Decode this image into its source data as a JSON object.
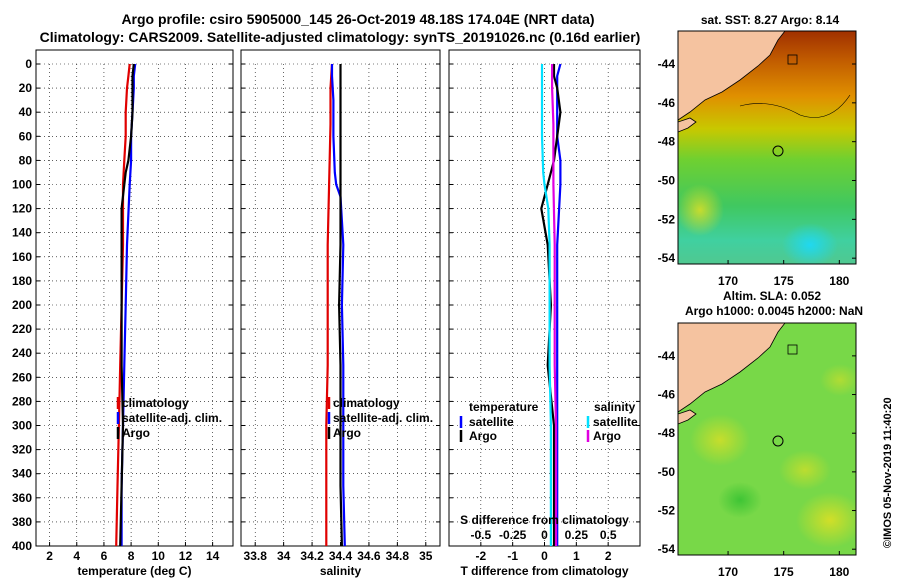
{
  "title_line1": "Argo profile: csiro 5905000_145 26-Oct-2019 48.18S 174.04E (NRT data)",
  "title_line2": "Climatology: CARS2009. Satellite-adjusted climatology: synTS_20191026.nc (0.16d earlier)",
  "map1_title": "sat. SST: 8.27 Argo: 8.14",
  "map2_title1": "Altim. SLA: 0.052",
  "map2_title2": "Argo h1000: 0.0045 h2000: NaN",
  "watermark": "©IMOS 05-Nov-2019 11:40:20",
  "colors": {
    "climatology": "#e00000",
    "satellite": "#0000ff",
    "argo": "#000000",
    "sal_satellite": "#00e0ff",
    "sal_argo": "#e000e0",
    "land": "#f5c3a0"
  },
  "chart_data": [
    {
      "type": "line",
      "id": "temperature",
      "xlabel": "temperature (deg C)",
      "ylabel": "",
      "xlim": [
        1,
        15.5
      ],
      "ylim": [
        400,
        0
      ],
      "xticks": [
        2,
        4,
        6,
        8,
        10,
        12,
        14
      ],
      "yticks": [
        0,
        20,
        40,
        60,
        80,
        100,
        120,
        140,
        160,
        180,
        200,
        220,
        240,
        260,
        280,
        300,
        320,
        340,
        360,
        380,
        400
      ],
      "legend": [
        "climatology",
        "satellite-adj. clim.",
        "Argo"
      ],
      "legend_position": "center-right",
      "series": [
        {
          "name": "climatology",
          "color": "#e00000",
          "depth": [
            0,
            10,
            20,
            40,
            60,
            80,
            100,
            150,
            200,
            250,
            300,
            350,
            400
          ],
          "values": [
            7.9,
            7.8,
            7.7,
            7.6,
            7.6,
            7.5,
            7.4,
            7.4,
            7.3,
            7.2,
            7.1,
            7.0,
            6.9
          ]
        },
        {
          "name": "satellite-adj. clim.",
          "color": "#0000ff",
          "depth": [
            0,
            10,
            20,
            40,
            60,
            80,
            100,
            150,
            200,
            250,
            300,
            350,
            400
          ],
          "values": [
            8.3,
            8.2,
            8.2,
            8.1,
            8.0,
            8.0,
            7.9,
            7.7,
            7.6,
            7.5,
            7.4,
            7.3,
            7.3
          ]
        },
        {
          "name": "Argo",
          "color": "#000000",
          "depth": [
            0,
            10,
            20,
            40,
            60,
            80,
            90,
            100,
            120,
            150,
            200,
            250,
            300,
            350,
            400
          ],
          "values": [
            8.2,
            8.1,
            8.1,
            8.1,
            8.0,
            7.8,
            7.6,
            7.5,
            7.3,
            7.3,
            7.3,
            7.3,
            7.4,
            7.3,
            7.2
          ]
        }
      ]
    },
    {
      "type": "line",
      "id": "salinity",
      "xlabel": "salinity",
      "ylabel": "",
      "xlim": [
        33.7,
        35.1
      ],
      "ylim": [
        400,
        0
      ],
      "xticks": [
        33.8,
        34,
        34.2,
        34.4,
        34.6,
        34.8,
        35
      ],
      "xticklabels": [
        "33.8",
        "34",
        "34.2",
        "34.4",
        "34.6",
        "34.8",
        "35"
      ],
      "legend": [
        "climatology",
        "satellite-adj. clim.",
        "Argo"
      ],
      "legend_position": "center-right",
      "series": [
        {
          "name": "climatology",
          "color": "#e00000",
          "depth": [
            0,
            20,
            50,
            100,
            150,
            200,
            250,
            300,
            350,
            400
          ],
          "values": [
            34.34,
            34.33,
            34.33,
            34.32,
            34.31,
            34.31,
            34.31,
            34.3,
            34.3,
            34.3
          ]
        },
        {
          "name": "satellite-adj. clim.",
          "color": "#0000ff",
          "depth": [
            0,
            10,
            30,
            60,
            90,
            100,
            110,
            130,
            150,
            200,
            250,
            300,
            350,
            400
          ],
          "values": [
            34.34,
            34.34,
            34.35,
            34.35,
            34.36,
            34.37,
            34.4,
            34.41,
            34.42,
            34.41,
            34.42,
            34.42,
            34.42,
            34.43
          ]
        },
        {
          "name": "Argo",
          "color": "#000000",
          "depth": [
            0,
            20,
            50,
            100,
            150,
            200,
            250,
            300,
            350,
            400
          ],
          "values": [
            34.4,
            34.4,
            34.4,
            34.4,
            34.4,
            34.39,
            34.4,
            34.4,
            34.4,
            34.41
          ]
        }
      ]
    },
    {
      "type": "line",
      "id": "difference",
      "xlabel": "T difference from climatology",
      "xlabel_top": "S difference from climatology",
      "xlim": [
        -3,
        3
      ],
      "ylim": [
        400,
        0
      ],
      "xticks": [
        -2,
        -1,
        0,
        1,
        2
      ],
      "xticks_s": [
        -0.5,
        -0.25,
        0,
        0.25,
        0.5
      ],
      "xticklabels_s": [
        "-0.5",
        "-0.25",
        "0",
        "0.25",
        "0.5"
      ],
      "legend_temperature_title": "temperature",
      "legend_salinity_title": "salinity",
      "legend_temperature": [
        "satellite",
        "Argo"
      ],
      "legend_salinity": [
        "satellite",
        "Argo"
      ],
      "series": [
        {
          "name": "T satellite",
          "color": "#0000ff",
          "depth": [
            0,
            10,
            20,
            40,
            60,
            80,
            100,
            150,
            200,
            250,
            300,
            350,
            400
          ],
          "values": [
            0.5,
            0.4,
            0.4,
            0.4,
            0.4,
            0.5,
            0.5,
            0.4,
            0.4,
            0.4,
            0.4,
            0.4,
            0.4
          ]
        },
        {
          "name": "T Argo",
          "color": "#000000",
          "depth": [
            0,
            10,
            20,
            40,
            60,
            80,
            90,
            100,
            120,
            150,
            200,
            250,
            300,
            350,
            400
          ],
          "values": [
            0.3,
            0.3,
            0.4,
            0.5,
            0.4,
            0.3,
            0.2,
            0.1,
            -0.1,
            0.1,
            0.2,
            0.1,
            0.3,
            0.3,
            0.3
          ]
        },
        {
          "name": "S satellite",
          "color": "#00e0ff",
          "depth": [
            0,
            10,
            30,
            60,
            90,
            100,
            120,
            150,
            200,
            250,
            300,
            350,
            400
          ],
          "values": [
            -0.02,
            -0.02,
            -0.02,
            -0.02,
            -0.01,
            0.0,
            0.03,
            0.04,
            0.04,
            0.04,
            0.05,
            0.05,
            0.05
          ]
        },
        {
          "name": "S Argo",
          "color": "#e000e0",
          "depth": [
            0,
            20,
            50,
            100,
            150,
            200,
            250,
            300,
            350,
            400
          ],
          "values": [
            0.06,
            0.06,
            0.07,
            0.07,
            0.08,
            0.08,
            0.08,
            0.09,
            0.09,
            0.09
          ]
        }
      ]
    },
    {
      "type": "heatmap",
      "id": "sst_map",
      "title": "sat. SST: 8.27 Argo: 8.14",
      "xticks": [
        170,
        175,
        180
      ],
      "yticks": [
        -44,
        -46,
        -48,
        -50,
        -52,
        -54
      ],
      "xlim": [
        165.5,
        181.5
      ],
      "ylim": [
        -54.3,
        -42.3
      ],
      "argo_position": [
        174.04,
        -48.18
      ]
    },
    {
      "type": "heatmap",
      "id": "sla_map",
      "title": "Altim. SLA: 0.052",
      "subtitle": "Argo h1000: 0.0045 h2000: NaN",
      "xticks": [
        170,
        175,
        180
      ],
      "yticks": [
        -44,
        -46,
        -48,
        -50,
        -52,
        -54
      ],
      "xlim": [
        165.5,
        181.5
      ],
      "ylim": [
        -54.3,
        -42.3
      ],
      "argo_position": [
        174.04,
        -48.18
      ]
    }
  ]
}
